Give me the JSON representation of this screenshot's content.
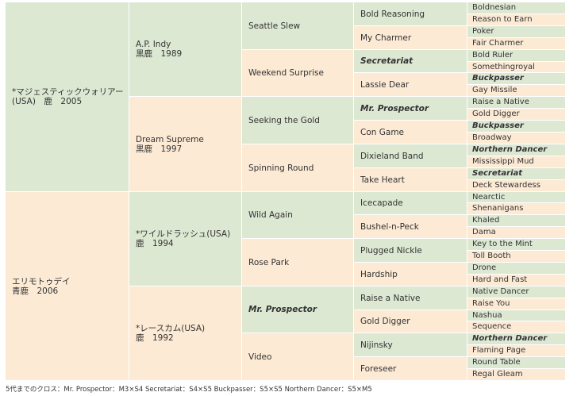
{
  "gen1": [
    {
      "name": "*マジェスティックウォリアー",
      "info": "(USA)　鹿　2005",
      "color": "g"
    },
    {
      "name": "エリモトゥデイ",
      "info": "青鹿　2006",
      "color": "p"
    }
  ],
  "gen2": [
    {
      "name": "A.P. Indy",
      "info": "黒鹿　1989",
      "color": "g"
    },
    {
      "name": "Dream Supreme",
      "info": "黒鹿　1997",
      "color": "p"
    },
    {
      "name": "*ワイルドラッシュ(USA)",
      "info": "鹿　1994",
      "color": "g"
    },
    {
      "name": "*レースカム(USA)",
      "info": "鹿　1992",
      "color": "p"
    }
  ],
  "gen3": [
    {
      "name": "Seattle Slew",
      "color": "g",
      "bold": false
    },
    {
      "name": "Weekend Surprise",
      "color": "p",
      "bold": false
    },
    {
      "name": "Seeking the Gold",
      "color": "g",
      "bold": false
    },
    {
      "name": "Spinning Round",
      "color": "p",
      "bold": false
    },
    {
      "name": "Wild Again",
      "color": "g",
      "bold": false
    },
    {
      "name": "Rose Park",
      "color": "p",
      "bold": false
    },
    {
      "name": "Mr. Prospector",
      "color": "g",
      "bold": true
    },
    {
      "name": "Video",
      "color": "p",
      "bold": false
    }
  ],
  "gen4": [
    {
      "name": "Bold Reasoning",
      "color": "g",
      "bold": false
    },
    {
      "name": "My Charmer",
      "color": "p",
      "bold": false
    },
    {
      "name": "Secretariat",
      "color": "g",
      "bold": true
    },
    {
      "name": "Lassie Dear",
      "color": "p",
      "bold": false
    },
    {
      "name": "Mr. Prospector",
      "color": "g",
      "bold": true
    },
    {
      "name": "Con Game",
      "color": "p",
      "bold": false
    },
    {
      "name": "Dixieland Band",
      "color": "g",
      "bold": false
    },
    {
      "name": "Take Heart",
      "color": "p",
      "bold": false
    },
    {
      "name": "Icecapade",
      "color": "g",
      "bold": false
    },
    {
      "name": "Bushel-n-Peck",
      "color": "p",
      "bold": false
    },
    {
      "name": "Plugged Nickle",
      "color": "g",
      "bold": false
    },
    {
      "name": "Hardship",
      "color": "p",
      "bold": false
    },
    {
      "name": "Raise a Native",
      "color": "g",
      "bold": false
    },
    {
      "name": "Gold Digger",
      "color": "p",
      "bold": false
    },
    {
      "name": "Nijinsky",
      "color": "g",
      "bold": false
    },
    {
      "name": "Foreseer",
      "color": "p",
      "bold": false
    }
  ],
  "gen5": [
    {
      "name": "Boldnesian",
      "color": "g",
      "bold": false
    },
    {
      "name": "Reason to Earn",
      "color": "p",
      "bold": false
    },
    {
      "name": "Poker",
      "color": "g",
      "bold": false
    },
    {
      "name": "Fair Charmer",
      "color": "p",
      "bold": false
    },
    {
      "name": "Bold Ruler",
      "color": "g",
      "bold": false
    },
    {
      "name": "Somethingroyal",
      "color": "p",
      "bold": false
    },
    {
      "name": "Buckpasser",
      "color": "g",
      "bold": true
    },
    {
      "name": "Gay Missile",
      "color": "p",
      "bold": false
    },
    {
      "name": "Raise a Native",
      "color": "g",
      "bold": false
    },
    {
      "name": "Gold Digger",
      "color": "p",
      "bold": false
    },
    {
      "name": "Buckpasser",
      "color": "g",
      "bold": true
    },
    {
      "name": "Broadway",
      "color": "p",
      "bold": false
    },
    {
      "name": "Northern Dancer",
      "color": "g",
      "bold": true
    },
    {
      "name": "Mississippi Mud",
      "color": "p",
      "bold": false
    },
    {
      "name": "Secretariat",
      "color": "g",
      "bold": true
    },
    {
      "name": "Deck Stewardess",
      "color": "p",
      "bold": false
    },
    {
      "name": "Nearctic",
      "color": "g",
      "bold": false
    },
    {
      "name": "Shenanigans",
      "color": "p",
      "bold": false
    },
    {
      "name": "Khaled",
      "color": "g",
      "bold": false
    },
    {
      "name": "Dama",
      "color": "p",
      "bold": false
    },
    {
      "name": "Key to the Mint",
      "color": "g",
      "bold": false
    },
    {
      "name": "Toll Booth",
      "color": "p",
      "bold": false
    },
    {
      "name": "Drone",
      "color": "g",
      "bold": false
    },
    {
      "name": "Hard and Fast",
      "color": "p",
      "bold": false
    },
    {
      "name": "Native Dancer",
      "color": "g",
      "bold": false
    },
    {
      "name": "Raise You",
      "color": "p",
      "bold": false
    },
    {
      "name": "Nashua",
      "color": "g",
      "bold": false
    },
    {
      "name": "Sequence",
      "color": "p",
      "bold": false
    },
    {
      "name": "Northern Dancer",
      "color": "g",
      "bold": true
    },
    {
      "name": "Flaming Page",
      "color": "p",
      "bold": false
    },
    {
      "name": "Round Table",
      "color": "g",
      "bold": false
    },
    {
      "name": "Regal Gleam",
      "color": "p",
      "bold": false
    }
  ],
  "footer": "5代までのクロス：Mr. Prospector：M3×S4 Secretariat：S4×S5 Buckpasser：S5×S5 Northern Dancer：S5×M5"
}
